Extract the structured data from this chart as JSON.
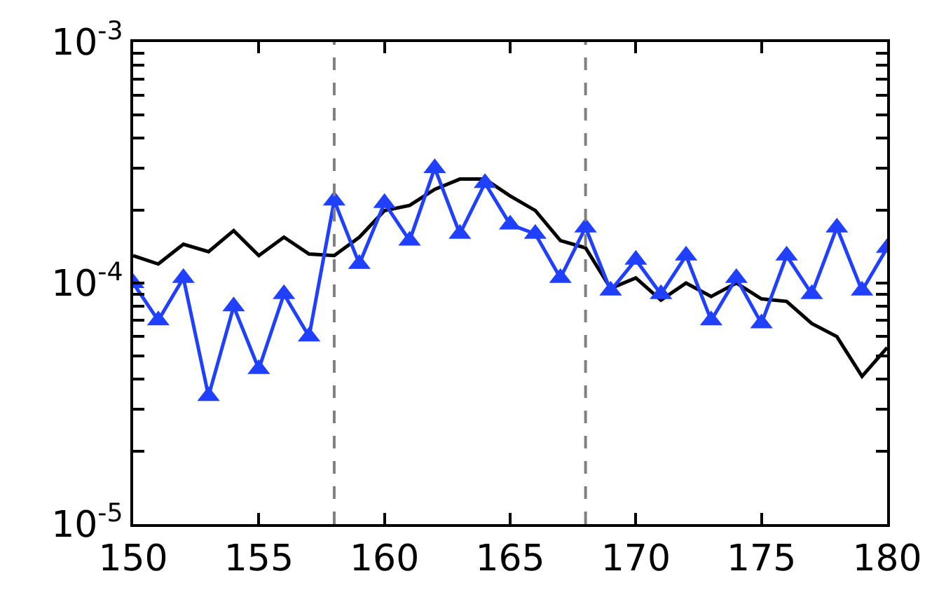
{
  "chart_data": {
    "type": "line",
    "log": "y",
    "x": [
      150,
      151,
      152,
      153,
      154,
      155,
      156,
      157,
      158,
      159,
      160,
      161,
      162,
      163,
      164,
      165,
      166,
      167,
      168,
      169,
      170,
      171,
      172,
      173,
      174,
      175,
      176,
      177,
      178,
      179,
      180
    ],
    "series": [
      {
        "color": "#000000",
        "marker": "none",
        "values": [
          0.00013,
          0.00012,
          0.000145,
          0.000135,
          0.000165,
          0.00013,
          0.000155,
          0.000132,
          0.00013,
          0.000155,
          0.0002,
          0.00021,
          0.000245,
          0.00027,
          0.00027,
          0.00023,
          0.0002,
          0.00015,
          0.00014,
          9.5e-05,
          0.000105,
          8.5e-05,
          0.0001,
          8.8e-05,
          0.0001,
          8.6e-05,
          8.4e-05,
          6.8e-05,
          6e-05,
          4.1e-05,
          5.4e-05
        ]
      },
      {
        "color": "#2040ff",
        "marker": "triangle",
        "values": [
          0.0001,
          7e-05,
          0.000105,
          3.4e-05,
          8e-05,
          4.4e-05,
          9e-05,
          6e-05,
          0.00022,
          0.00012,
          0.000215,
          0.00015,
          0.0003,
          0.00016,
          0.00026,
          0.000175,
          0.00016,
          0.000105,
          0.00017,
          9.3e-05,
          0.000125,
          9e-05,
          0.00013,
          7e-05,
          0.000105,
          6.8e-05,
          0.00013,
          9e-05,
          0.00017,
          9.3e-05,
          0.00014
        ]
      }
    ],
    "xlim": [
      150,
      180
    ],
    "xticks": [
      150,
      155,
      160,
      165,
      170,
      175,
      180
    ],
    "ylim": [
      1e-05,
      0.001
    ],
    "yticks": [
      {
        "value": 1e-05,
        "label": "10$^{-5}$"
      },
      {
        "value": 2e-05,
        "label": null
      },
      {
        "value": 3e-05,
        "label": null
      },
      {
        "value": 4e-05,
        "label": null
      },
      {
        "value": 5e-05,
        "label": null
      },
      {
        "value": 6e-05,
        "label": null
      },
      {
        "value": 7e-05,
        "label": null
      },
      {
        "value": 8e-05,
        "label": null
      },
      {
        "value": 9e-05,
        "label": null
      },
      {
        "value": 0.0001,
        "label": "10$^{-4}$"
      },
      {
        "value": 0.0002,
        "label": null
      },
      {
        "value": 0.0003,
        "label": null
      },
      {
        "value": 0.0004,
        "label": null
      },
      {
        "value": 0.0005,
        "label": null
      },
      {
        "value": 0.0006,
        "label": null
      },
      {
        "value": 0.0007,
        "label": null
      },
      {
        "value": 0.0008,
        "label": null
      },
      {
        "value": 0.0009,
        "label": null
      },
      {
        "value": 0.001,
        "label": "10$^{-3}$"
      }
    ],
    "ref_lines": [
      {
        "axis": "x",
        "value": 158,
        "color": "#808080",
        "line_style": "dashed"
      },
      {
        "axis": "x",
        "value": 168,
        "color": "#808080",
        "line_style": "dashed"
      }
    ]
  }
}
